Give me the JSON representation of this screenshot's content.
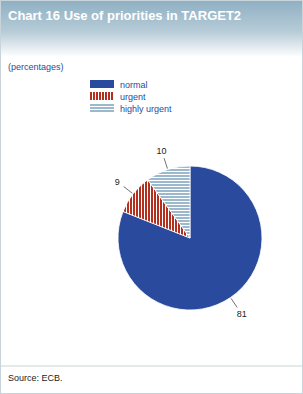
{
  "chart_data": {
    "type": "pie",
    "title": "Chart 16 Use of priorities in TARGET2",
    "subtitle": "(percentages)",
    "categories": [
      "normal",
      "urgent",
      "highly urgent"
    ],
    "values": [
      81,
      9,
      10
    ],
    "colors": [
      "#2a4a9e",
      "#b3301e",
      "#9bb8cc"
    ],
    "data_labels": true,
    "legend": "top-left",
    "source": "Source: ECB."
  }
}
